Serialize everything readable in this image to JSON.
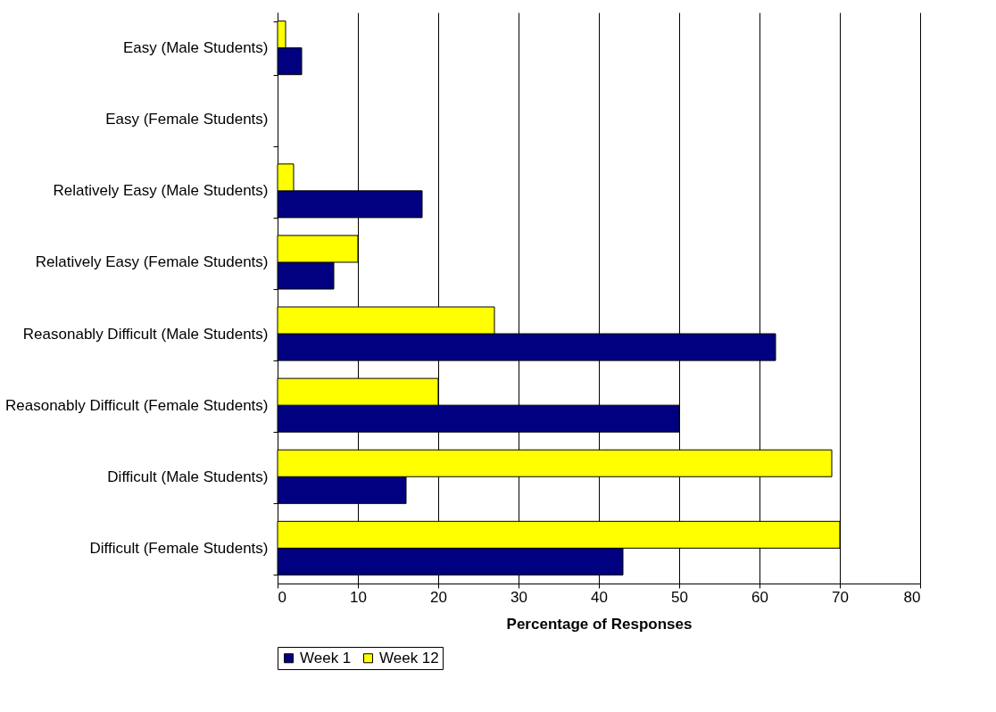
{
  "chart_data": {
    "type": "bar",
    "orientation": "horizontal",
    "xlabel": "Percentage of Responses",
    "categories": [
      "Easy (Male Students)",
      "Easy (Female Students)",
      "Relatively Easy (Male Students)",
      "Relatively Easy (Female Students)",
      "Reasonably Difficult (Male Students)",
      "Reasonably Difficult (Female Students)",
      "Difficult (Male Students)",
      "Difficult (Female Students)"
    ],
    "series": [
      {
        "name": "Week 1",
        "color": "#000080",
        "values": [
          3,
          null,
          18,
          7,
          62,
          50,
          16,
          43
        ]
      },
      {
        "name": "Week 12",
        "color": "#ffff00",
        "values": [
          1,
          null,
          2,
          10,
          27,
          20,
          69,
          70
        ]
      }
    ],
    "xlim": [
      0,
      80
    ],
    "xticks": [
      0,
      10,
      20,
      30,
      40,
      50,
      60,
      70,
      80
    ],
    "grid": "x",
    "legend": "bottom"
  }
}
